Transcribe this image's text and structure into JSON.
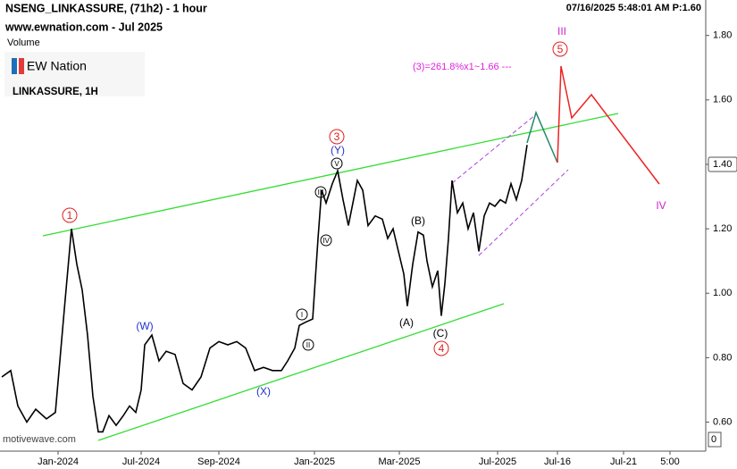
{
  "chart_data": {
    "type": "line",
    "title": "NSENG_LINKASSURE, (71h2) - 1 hour",
    "subtitle": "www.ewnation.com  - Jul 2025",
    "volume_label": "Volume",
    "logo": "EW Nation",
    "symbol": "LINKASSURE, 1H",
    "timestamp": "07/16/2025 5:48:01 AM  P:1.60",
    "watermark": "motivewave.com",
    "annotations": [
      "(3)=261.8%x1~1.66 ---"
    ],
    "wave_labels": [
      "1",
      "3",
      "(Y)",
      "V",
      "III",
      "IV",
      "I",
      "II",
      "(W)",
      "(X)",
      "(A)",
      "(B)",
      "(C)",
      "4",
      "5",
      "III",
      "IV"
    ],
    "volume_tick": "0",
    "series": [
      {
        "name": "LINKASSURE",
        "color": "#000000",
        "x": [
          2,
          12,
          20,
          30,
          40,
          52,
          62,
          72,
          80,
          86,
          92,
          98,
          104,
          110,
          115,
          122,
          130,
          138,
          145,
          152,
          158,
          162,
          170,
          178,
          186,
          196,
          205,
          215,
          225,
          235,
          245,
          255,
          265,
          275,
          285,
          295,
          305,
          315,
          322,
          330,
          335,
          342,
          350,
          356,
          360,
          365,
          372,
          378,
          384,
          390,
          395,
          400,
          406,
          412,
          420,
          428,
          434,
          440,
          446,
          452,
          456,
          462,
          468,
          474,
          478,
          484,
          490,
          494,
          498,
          502,
          506,
          512,
          518,
          524,
          530,
          536,
          542,
          548,
          554,
          560,
          566,
          572,
          578,
          584,
          590
        ],
        "values": [
          0.74,
          0.76,
          0.65,
          0.6,
          0.64,
          0.61,
          0.63,
          0.95,
          1.2,
          1.09,
          1.01,
          0.87,
          0.68,
          0.57,
          0.57,
          0.62,
          0.59,
          0.62,
          0.65,
          0.63,
          0.7,
          0.84,
          0.87,
          0.79,
          0.82,
          0.81,
          0.72,
          0.7,
          0.74,
          0.83,
          0.85,
          0.84,
          0.85,
          0.83,
          0.76,
          0.77,
          0.76,
          0.76,
          0.79,
          0.83,
          0.9,
          0.91,
          0.92,
          1.17,
          1.32,
          1.28,
          1.34,
          1.38,
          1.29,
          1.21,
          1.28,
          1.35,
          1.32,
          1.21,
          1.24,
          1.23,
          1.17,
          1.2,
          1.13,
          1.06,
          0.96,
          1.09,
          1.19,
          1.18,
          1.1,
          1.02,
          1.07,
          0.93,
          1.03,
          1.17,
          1.35,
          1.25,
          1.28,
          1.2,
          1.25,
          1.13,
          1.24,
          1.28,
          1.27,
          1.29,
          1.28,
          1.34,
          1.29,
          1.35,
          1.46
        ]
      }
    ],
    "xlim": [
      0,
      790
    ],
    "xticks": [
      {
        "value": 65,
        "label": "Jan-2024"
      },
      {
        "value": 158,
        "label": "Jul-2024"
      },
      {
        "value": 245,
        "label": "Sep-2024"
      },
      {
        "value": 352,
        "label": "Jan-2025"
      },
      {
        "value": 447,
        "label": "Mar-2025"
      },
      {
        "value": 557,
        "label": "Jul-2025"
      },
      {
        "value": 624,
        "label": "Jul-16"
      },
      {
        "value": 698,
        "label": "Jul-21"
      },
      {
        "value": 750,
        "label": "5:00"
      }
    ],
    "ylim": [
      0.51,
      1.91
    ],
    "yticks": [
      {
        "value": 0.6,
        "label": "0.60"
      },
      {
        "value": 0.8,
        "label": "0.80"
      },
      {
        "value": 1.0,
        "label": "1.00"
      },
      {
        "value": 1.2,
        "label": "1.20"
      },
      {
        "value": 1.4,
        "label": "1.40"
      },
      {
        "value": 1.6,
        "label": "1.60"
      },
      {
        "value": 1.8,
        "label": "1.80"
      }
    ],
    "current_tick": 4
  }
}
